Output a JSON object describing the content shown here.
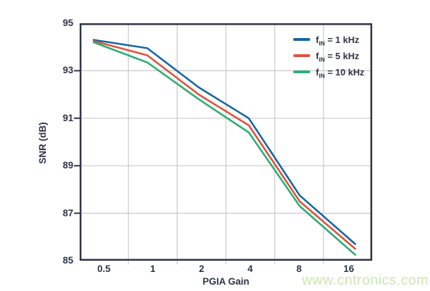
{
  "watermark": {
    "text": "www.cntronics.com",
    "color": "#cbe7b4"
  },
  "colors": {
    "text": "#2c3447",
    "axis_border": "#2c3447",
    "grid": "#c9c9c9",
    "background": "#ffffff"
  },
  "chart_data": {
    "type": "line",
    "title": "",
    "xlabel": "PGIA Gain",
    "ylabel": "SNR (dB)",
    "x_scale": "log2",
    "categories": [
      "0.5",
      "1",
      "2",
      "4",
      "8",
      "16"
    ],
    "x_values": [
      0.5,
      1,
      2,
      4,
      8,
      16
    ],
    "ylim": [
      85,
      95
    ],
    "y_ticks": [
      "95",
      "93",
      "91",
      "89",
      "87",
      "85"
    ],
    "y_tick_values": [
      95,
      93,
      91,
      89,
      87,
      85
    ],
    "grid": true,
    "legend_position": "top-right-inside",
    "series": [
      {
        "name": "fIN = 1 kHz",
        "color": "#1566a3",
        "legend": {
          "prefix": "f",
          "sub": "IN",
          "suffix": " = 1 kHz"
        },
        "values": [
          94.3,
          93.95,
          92.3,
          91.0,
          87.75,
          85.7
        ]
      },
      {
        "name": "fIN = 5 kHz",
        "color": "#e0513e",
        "legend": {
          "prefix": "f",
          "sub": "IN",
          "suffix": " = 5 kHz"
        },
        "values": [
          94.25,
          93.65,
          92.0,
          90.7,
          87.5,
          85.5
        ]
      },
      {
        "name": "fIN = 10 kHz",
        "color": "#2bae72",
        "legend": {
          "prefix": "f",
          "sub": "IN",
          "suffix": " = 10 kHz"
        },
        "values": [
          94.2,
          93.35,
          91.8,
          90.4,
          87.3,
          85.25
        ]
      }
    ]
  }
}
